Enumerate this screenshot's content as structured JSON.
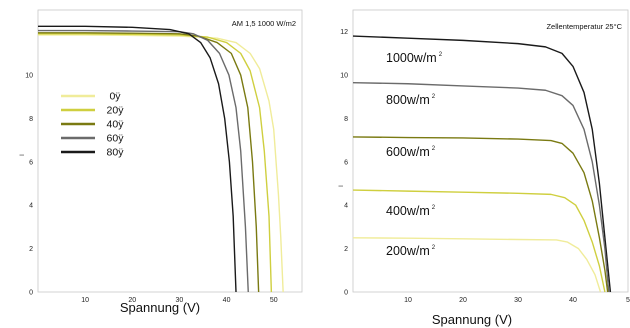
{
  "chart_data": [
    {
      "type": "line",
      "title": "AM 1,5 1000 W/m2",
      "xlabel": "Spannung (V)",
      "ylabel": "I",
      "xlim": [
        0,
        56
      ],
      "ylim": [
        0,
        13
      ],
      "x_ticks": [
        "10",
        "20",
        "30",
        "40",
        "50"
      ],
      "y_ticks": [
        "0",
        "2",
        "4",
        "6",
        "8",
        "10"
      ],
      "grid": false,
      "legend_position": "left",
      "series": [
        {
          "name": "0ÿ",
          "color": "#f0ec9a",
          "points": [
            [
              0,
              11.85
            ],
            [
              10,
              11.85
            ],
            [
              20,
              11.83
            ],
            [
              30,
              11.8
            ],
            [
              38,
              11.7
            ],
            [
              42,
              11.5
            ],
            [
              45,
              11.0
            ],
            [
              47,
              10.3
            ],
            [
              49,
              8.8
            ],
            [
              50,
              7.5
            ],
            [
              51,
              4.5
            ],
            [
              51.5,
              2.5
            ],
            [
              52,
              0
            ]
          ]
        },
        {
          "name": "20ÿ",
          "color": "#cfcf3f",
          "points": [
            [
              0,
              11.9
            ],
            [
              10,
              11.9
            ],
            [
              20,
              11.88
            ],
            [
              30,
              11.85
            ],
            [
              36,
              11.75
            ],
            [
              40,
              11.5
            ],
            [
              43,
              11.0
            ],
            [
              45,
              10.2
            ],
            [
              47,
              8.5
            ],
            [
              48,
              6.5
            ],
            [
              49,
              3.5
            ],
            [
              49.5,
              0
            ]
          ]
        },
        {
          "name": "40ÿ",
          "color": "#7a7a12",
          "points": [
            [
              0,
              11.95
            ],
            [
              10,
              11.95
            ],
            [
              20,
              11.93
            ],
            [
              30,
              11.9
            ],
            [
              34,
              11.8
            ],
            [
              38,
              11.5
            ],
            [
              41,
              11.0
            ],
            [
              43,
              10.0
            ],
            [
              44.5,
              8.5
            ],
            [
              45.5,
              6.0
            ],
            [
              46.3,
              3.0
            ],
            [
              46.8,
              0
            ]
          ]
        },
        {
          "name": "60ÿ",
          "color": "#6b6b6b",
          "points": [
            [
              0,
              12.05
            ],
            [
              10,
              12.05
            ],
            [
              20,
              12.03
            ],
            [
              30,
              12.0
            ],
            [
              33,
              11.9
            ],
            [
              36,
              11.6
            ],
            [
              38.5,
              11.0
            ],
            [
              40.5,
              10.0
            ],
            [
              42,
              8.5
            ],
            [
              43,
              6.5
            ],
            [
              44,
              3.0
            ],
            [
              44.6,
              0
            ]
          ]
        },
        {
          "name": "80ÿ",
          "color": "#1a1a1a",
          "points": [
            [
              0,
              12.25
            ],
            [
              10,
              12.25
            ],
            [
              20,
              12.2
            ],
            [
              28,
              12.1
            ],
            [
              32,
              11.9
            ],
            [
              34.5,
              11.5
            ],
            [
              36.5,
              10.8
            ],
            [
              38.3,
              9.6
            ],
            [
              39.6,
              8.0
            ],
            [
              40.6,
              6.0
            ],
            [
              41.4,
              3.5
            ],
            [
              42,
              0
            ]
          ]
        }
      ]
    },
    {
      "type": "line",
      "title": "Zellentemperatur 25°C",
      "xlabel": "Spannung (V)",
      "ylabel": "I",
      "xlim": [
        0,
        50
      ],
      "ylim": [
        0,
        13
      ],
      "x_ticks": [
        "10",
        "20",
        "30",
        "40",
        "5"
      ],
      "y_ticks": [
        "0",
        "2",
        "4",
        "6",
        "8",
        "10",
        "12"
      ],
      "grid": false,
      "series": [
        {
          "name": "1000w/m",
          "unit_sup": "2",
          "color": "#1a1a1a",
          "points": [
            [
              0,
              11.8
            ],
            [
              10,
              11.7
            ],
            [
              20,
              11.6
            ],
            [
              30,
              11.45
            ],
            [
              35,
              11.3
            ],
            [
              38,
              11.0
            ],
            [
              40,
              10.4
            ],
            [
              42,
              9.2
            ],
            [
              43.5,
              7.5
            ],
            [
              44.8,
              5.0
            ],
            [
              46,
              2.0
            ],
            [
              46.8,
              0
            ]
          ]
        },
        {
          "name": "800w/m",
          "unit_sup": "2",
          "color": "#6b6b6b",
          "points": [
            [
              0,
              9.65
            ],
            [
              10,
              9.6
            ],
            [
              20,
              9.5
            ],
            [
              30,
              9.4
            ],
            [
              35,
              9.3
            ],
            [
              38,
              9.05
            ],
            [
              40,
              8.6
            ],
            [
              42,
              7.5
            ],
            [
              43.5,
              6.0
            ],
            [
              44.8,
              4.0
            ],
            [
              45.8,
              2.0
            ],
            [
              46.5,
              0
            ]
          ]
        },
        {
          "name": "600w/m",
          "unit_sup": "2",
          "color": "#7a7a12",
          "points": [
            [
              0,
              7.15
            ],
            [
              10,
              7.12
            ],
            [
              20,
              7.1
            ],
            [
              30,
              7.05
            ],
            [
              36,
              6.98
            ],
            [
              38,
              6.85
            ],
            [
              40,
              6.4
            ],
            [
              42,
              5.5
            ],
            [
              43.5,
              4.2
            ],
            [
              44.8,
              2.5
            ],
            [
              45.8,
              1.0
            ],
            [
              46.3,
              0
            ]
          ]
        },
        {
          "name": "400w/m",
          "unit_sup": "2",
          "color": "#cfcf3f",
          "points": [
            [
              0,
              4.7
            ],
            [
              10,
              4.65
            ],
            [
              20,
              4.6
            ],
            [
              30,
              4.55
            ],
            [
              36,
              4.5
            ],
            [
              38.5,
              4.35
            ],
            [
              40.5,
              4.0
            ],
            [
              42,
              3.3
            ],
            [
              43.5,
              2.3
            ],
            [
              44.8,
              1.2
            ],
            [
              45.8,
              0
            ]
          ]
        },
        {
          "name": "200w/m",
          "unit_sup": "2",
          "color": "#f0ec9a",
          "points": [
            [
              0,
              2.5
            ],
            [
              10,
              2.48
            ],
            [
              20,
              2.45
            ],
            [
              30,
              2.42
            ],
            [
              37,
              2.4
            ],
            [
              39,
              2.3
            ],
            [
              41,
              2.0
            ],
            [
              42.5,
              1.5
            ],
            [
              44,
              0.8
            ],
            [
              45,
              0
            ]
          ]
        }
      ]
    }
  ]
}
